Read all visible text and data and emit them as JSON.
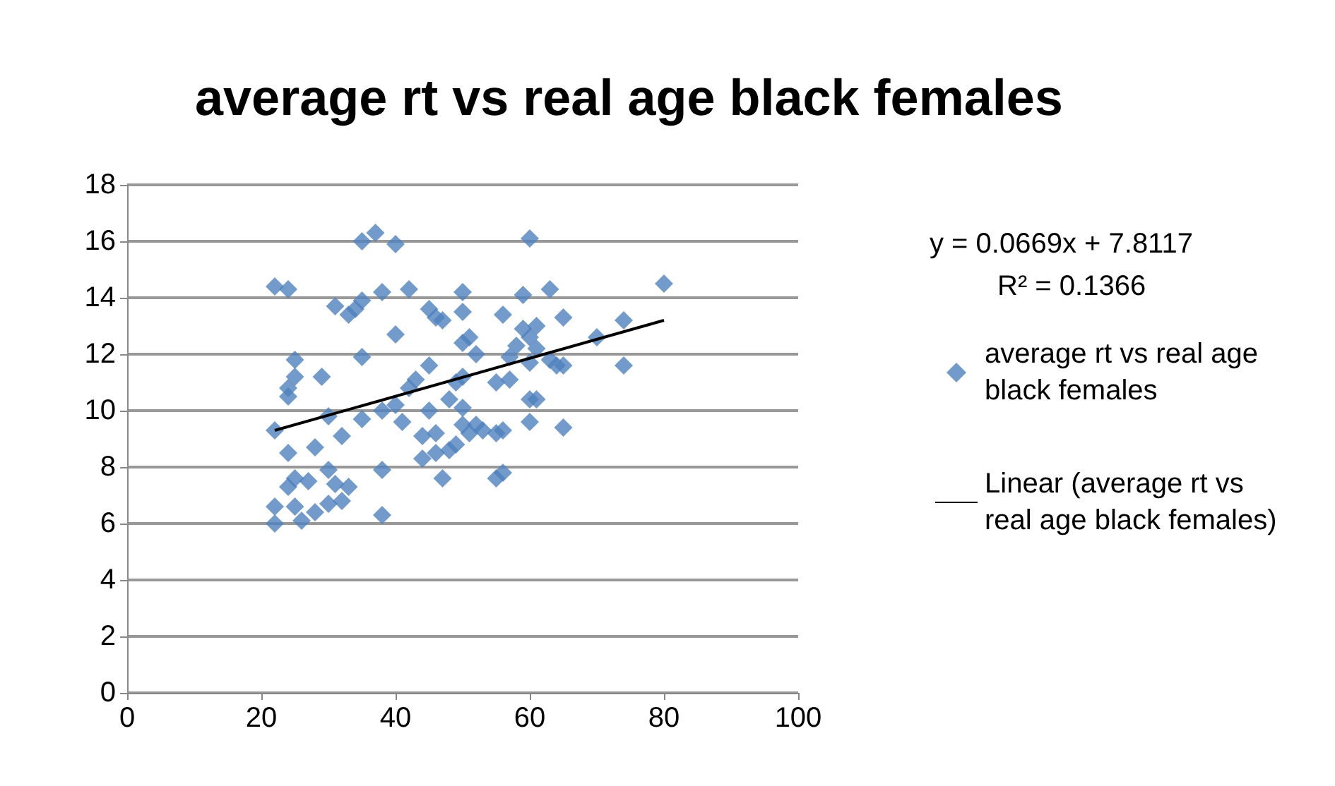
{
  "chart_data": {
    "type": "scatter",
    "title": "average rt vs real age black females",
    "annotations": [
      "y = 0.0669x + 7.8117",
      "R² = 0.1366"
    ],
    "xlim": [
      0,
      100
    ],
    "xticks": [
      0,
      20,
      40,
      60,
      80,
      100
    ],
    "ylim": [
      0,
      18
    ],
    "yticks": [
      0,
      2,
      4,
      6,
      8,
      10,
      12,
      14,
      16,
      18
    ],
    "grid": "y",
    "legend": "right",
    "marker": "diamond",
    "series": [
      {
        "name": "average rt vs real age black females",
        "color": "#4f81bd",
        "x": [
          22,
          24,
          22,
          22,
          22,
          24,
          24,
          25,
          25,
          24,
          24,
          25,
          26,
          25,
          27,
          28,
          28,
          29,
          30,
          30,
          30,
          31,
          31,
          32,
          32,
          33,
          33,
          34,
          35,
          35,
          35,
          35,
          37,
          38,
          38,
          38,
          38,
          40,
          40,
          40,
          41,
          42,
          42,
          43,
          44,
          44,
          45,
          45,
          45,
          46,
          46,
          46,
          47,
          47,
          48,
          48,
          49,
          49,
          50,
          50,
          50,
          50,
          50,
          50,
          51,
          51,
          52,
          52,
          53,
          55,
          55,
          55,
          56,
          56,
          56,
          57,
          57,
          58,
          59,
          59,
          60,
          60,
          60,
          60,
          60,
          61,
          61,
          61,
          63,
          63,
          64,
          65,
          65,
          65,
          70,
          74,
          74,
          80
        ],
        "values": [
          14.4,
          14.3,
          9.3,
          6.6,
          6.0,
          10.8,
          10.5,
          11.8,
          11.2,
          8.5,
          7.3,
          7.6,
          6.1,
          6.6,
          7.5,
          8.7,
          6.4,
          11.2,
          9.8,
          7.9,
          6.7,
          13.7,
          7.4,
          9.1,
          6.8,
          7.3,
          13.4,
          13.6,
          13.9,
          16.0,
          11.9,
          9.7,
          16.3,
          14.2,
          10.0,
          7.9,
          6.3,
          15.9,
          12.7,
          10.2,
          9.6,
          14.3,
          10.8,
          11.1,
          9.1,
          8.3,
          13.6,
          11.6,
          10.0,
          13.3,
          9.2,
          8.5,
          13.2,
          7.6,
          8.6,
          10.4,
          11.0,
          8.8,
          14.2,
          13.5,
          12.4,
          11.2,
          10.1,
          9.5,
          12.6,
          9.2,
          12.0,
          9.5,
          9.3,
          11.0,
          9.2,
          7.6,
          13.4,
          9.3,
          7.8,
          11.9,
          11.1,
          12.3,
          14.1,
          12.9,
          16.1,
          12.6,
          11.7,
          10.4,
          9.6,
          12.2,
          10.4,
          13.0,
          14.3,
          11.8,
          11.6,
          13.3,
          11.6,
          9.4,
          12.6,
          13.2,
          11.6,
          14.5
        ]
      },
      {
        "name": "Linear (average rt vs real age black females)",
        "color": "#000000",
        "type": "line",
        "marker": "none",
        "x": [
          22,
          80
        ],
        "values": [
          9.3,
          13.2
        ]
      }
    ]
  }
}
